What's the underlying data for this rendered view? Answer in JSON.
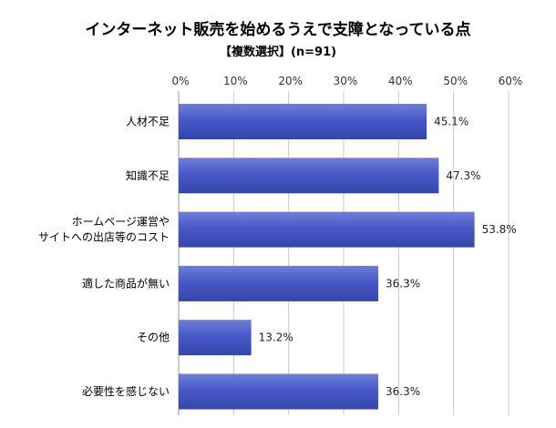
{
  "chart_data": {
    "type": "bar",
    "orientation": "horizontal",
    "title": "インターネット販売を始めるうえで支障となっている点",
    "subtitle": "【複数選択】(n=91)",
    "categories": [
      [
        "人材不足"
      ],
      [
        "知識不足"
      ],
      [
        "ホームページ運営や",
        "サイトへの出店等のコスト"
      ],
      [
        "適した商品が無い"
      ],
      [
        "その他"
      ],
      [
        "必要性を感じない"
      ]
    ],
    "values": [
      45.1,
      47.3,
      53.8,
      36.3,
      13.2,
      36.3
    ],
    "value_labels": [
      "45.1%",
      "47.3%",
      "53.8%",
      "36.3%",
      "13.2%",
      "36.3%"
    ],
    "xlim": [
      0,
      60
    ],
    "xticks": [
      "0%",
      "10%",
      "20%",
      "30%",
      "40%",
      "50%",
      "60%"
    ],
    "xlabel": "",
    "ylabel": "",
    "grid": true,
    "bar_color": "#4a5fc8"
  }
}
